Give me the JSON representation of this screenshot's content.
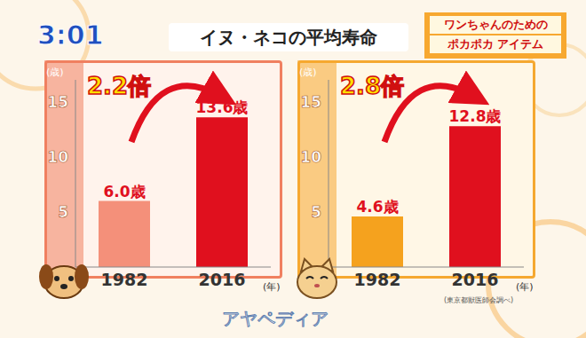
{
  "screen": {
    "clock": "3:01",
    "title": "イヌ・ネコの平均寿命",
    "corner": [
      "ワンちゃんのための",
      "ポカポカ アイテム"
    ],
    "source": "(東京都獣医師会調べ)",
    "logo": "アヤペディア"
  },
  "chart_data": [
    {
      "type": "bar",
      "categories": [
        "1982",
        "2016"
      ],
      "values": [
        6.0,
        13.6
      ],
      "value_labels": [
        "6.0歳",
        "13.6歳"
      ],
      "colors": [
        "#f4907a",
        "#e0101e"
      ],
      "y_label": "(歳)",
      "x_label": "(年)",
      "annotation": "2.2倍",
      "ylim": [
        0,
        17
      ],
      "yticks": [
        5,
        10,
        15
      ],
      "data_labels": true,
      "grid": false
    },
    {
      "type": "bar",
      "categories": [
        "1982",
        "2016"
      ],
      "values": [
        4.6,
        12.8
      ],
      "value_labels": [
        "4.6歳",
        "12.8歳"
      ],
      "colors": [
        "#f5a21e",
        "#e0101e"
      ],
      "y_label": "(歳)",
      "x_label": "(年)",
      "annotation": "2.8倍",
      "ylim": [
        0,
        17
      ],
      "yticks": [
        5,
        10,
        15
      ],
      "data_labels": true,
      "grid": false
    }
  ]
}
